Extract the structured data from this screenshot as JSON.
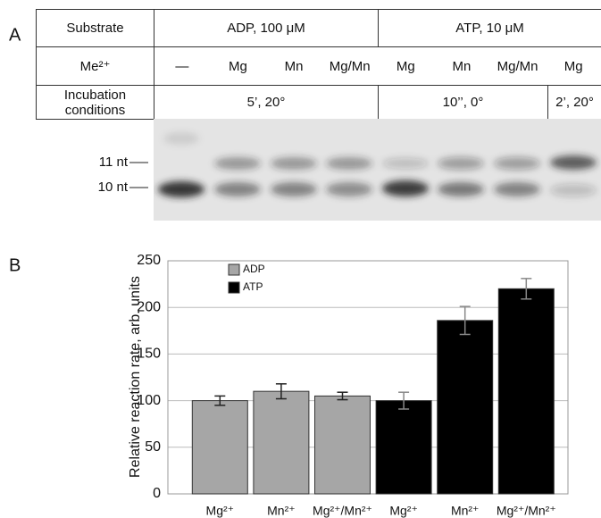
{
  "panel_a": {
    "label": "A",
    "table": {
      "rows": [
        [
          "Substrate",
          "ADP, 100 μM",
          "ATP, 10 μM"
        ],
        [
          "Me²⁺",
          "—",
          "Mg",
          "Mn",
          "Mg/Mn",
          "Mg",
          "Mn",
          "Mg/Mn",
          "Mg"
        ],
        [
          "Incubation conditions",
          "5’, 20°",
          "10’’, 0°",
          "2’, 20°"
        ]
      ]
    },
    "gel_labels": [
      "11 nt",
      "10 nt"
    ]
  },
  "chart_data": {
    "type": "bar",
    "label": "B",
    "y_label": "Relative reaction rate, arb. units",
    "categories": [
      "Mg²⁺",
      "Mn²⁺",
      "Mg²⁺/Mn²⁺",
      "Mg²⁺",
      "Mn²⁺",
      "Mg²⁺/Mn²⁺"
    ],
    "series": [
      {
        "name": "ADP",
        "color": "#a6a6a6",
        "values": [
          100,
          110,
          105,
          null,
          null,
          null
        ],
        "errors": [
          5,
          8,
          4,
          null,
          null,
          null
        ]
      },
      {
        "name": "ATP",
        "color": "#000000",
        "values": [
          null,
          null,
          null,
          100,
          186,
          220
        ],
        "errors": [
          null,
          null,
          null,
          9,
          15,
          11
        ]
      }
    ],
    "ylim": [
      0,
      250
    ],
    "yticks": [
      0,
      50,
      100,
      150,
      200,
      250
    ],
    "grid": true,
    "legend": "top-left"
  }
}
